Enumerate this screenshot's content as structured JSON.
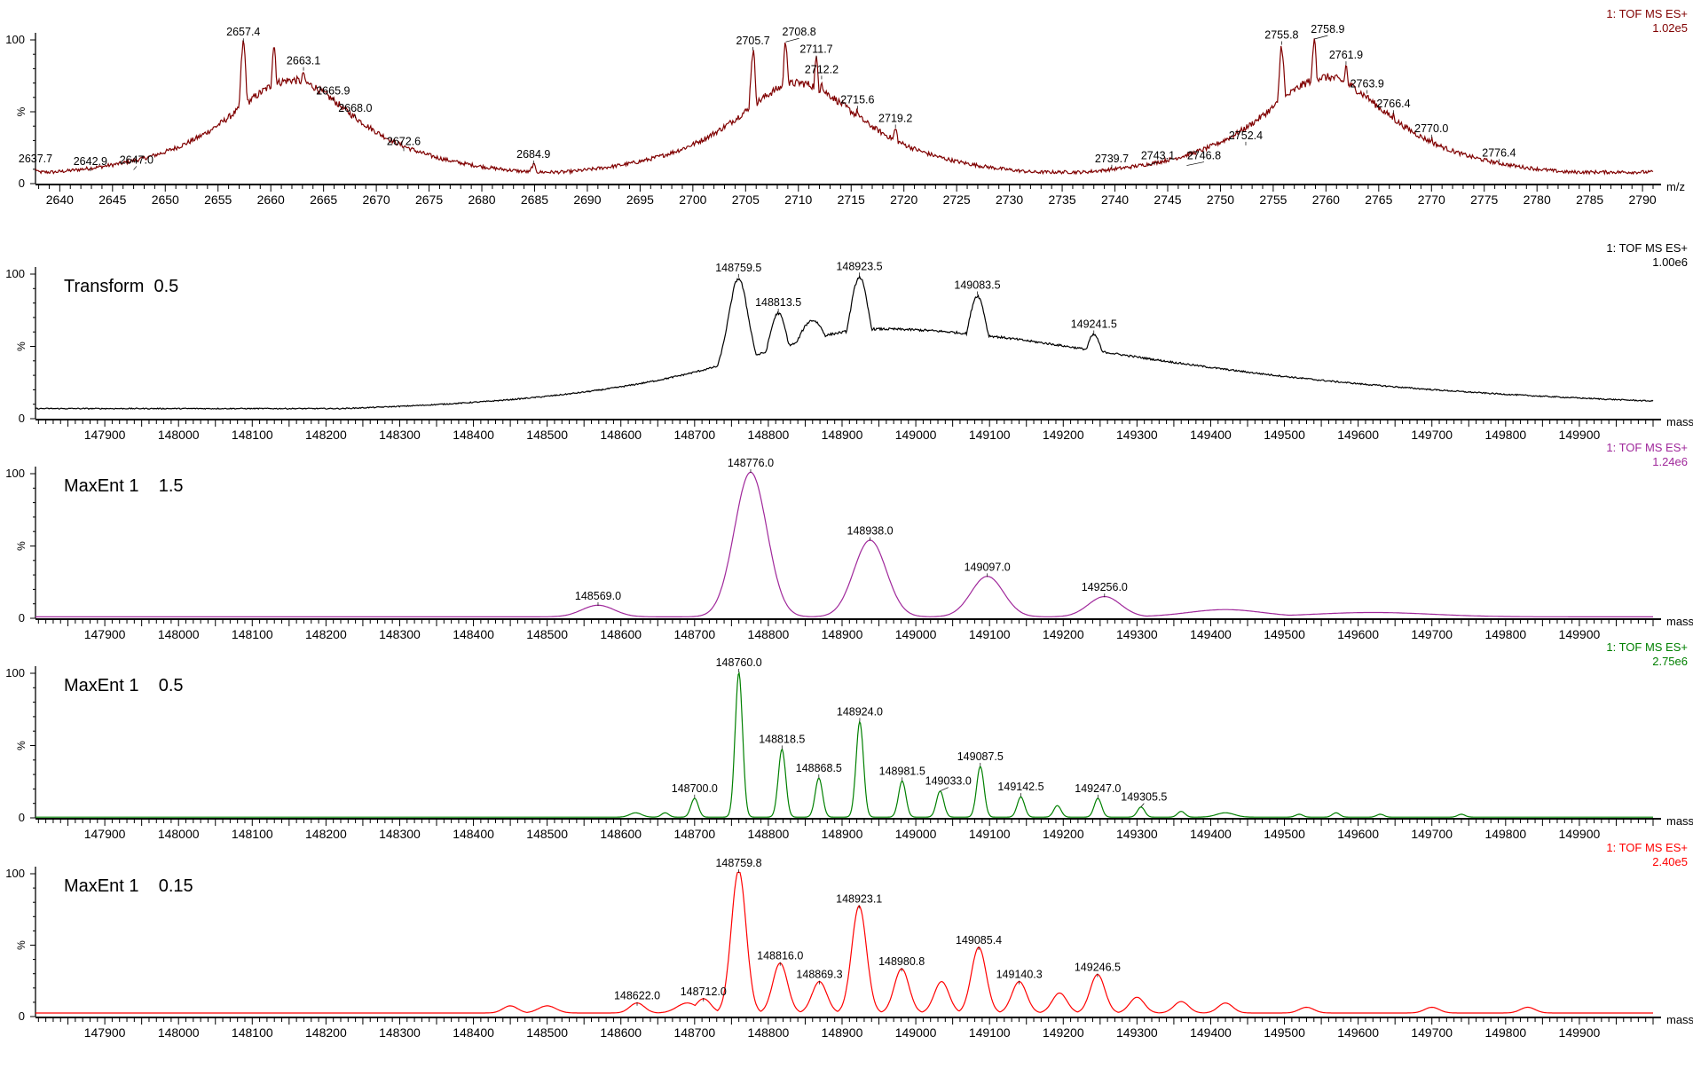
{
  "chart_data": [
    {
      "type": "line",
      "title": "",
      "xlabel": "m/z",
      "ylabel": "%",
      "scan_label": "1: TOF MS ES+",
      "intensity": "1.02e5",
      "color": "#800000",
      "xlim": [
        2637.7,
        2791
      ],
      "ylim": [
        0,
        100
      ],
      "yticks": [
        "0",
        "100"
      ],
      "xticks": [
        "2640",
        "2645",
        "2650",
        "2655",
        "2660",
        "2665",
        "2670",
        "2675",
        "2680",
        "2685",
        "2690",
        "2695",
        "2700",
        "2705",
        "2710",
        "2715",
        "2720",
        "2725",
        "2730",
        "2735",
        "2740",
        "2745",
        "2750",
        "2755",
        "2760",
        "2765",
        "2770",
        "2775",
        "2780",
        "2785",
        "2790"
      ],
      "minor_tick_step": 1,
      "baseline": 8,
      "noise": 1.6,
      "shape": "lorentz",
      "peak_width": 0.45,
      "peaks": [
        {
          "x": 2637.7,
          "y": 10,
          "label": "2637.7"
        },
        {
          "x": 2642.9,
          "y": 8,
          "label": "2642.9"
        },
        {
          "x": 2647.0,
          "y": 9,
          "label": "2647.0"
        },
        {
          "x": 2657.4,
          "y": 98,
          "label": "2657.4"
        },
        {
          "x": 2663.1,
          "y": 78,
          "label": "2663.1"
        },
        {
          "x": 2665.9,
          "y": 57,
          "label": "2665.9"
        },
        {
          "x": 2668.0,
          "y": 45,
          "label": "2668.0"
        },
        {
          "x": 2672.6,
          "y": 22,
          "label": "2672.6"
        },
        {
          "x": 2684.9,
          "y": 13,
          "label": "2684.9"
        },
        {
          "x": 2705.7,
          "y": 92,
          "label": "2705.7"
        },
        {
          "x": 2708.8,
          "y": 98,
          "label": "2708.8"
        },
        {
          "x": 2711.7,
          "y": 86,
          "label": "2711.7"
        },
        {
          "x": 2712.2,
          "y": 72,
          "label": "2712.2"
        },
        {
          "x": 2715.6,
          "y": 51,
          "label": "2715.6"
        },
        {
          "x": 2719.2,
          "y": 38,
          "label": "2719.2"
        },
        {
          "x": 2739.7,
          "y": 10,
          "label": "2739.7"
        },
        {
          "x": 2743.1,
          "y": 12,
          "label": "2743.1"
        },
        {
          "x": 2746.8,
          "y": 12,
          "label": "2746.8"
        },
        {
          "x": 2752.4,
          "y": 26,
          "label": "2752.4"
        },
        {
          "x": 2755.8,
          "y": 96,
          "label": "2755.8"
        },
        {
          "x": 2758.9,
          "y": 100,
          "label": "2758.9"
        },
        {
          "x": 2761.9,
          "y": 82,
          "label": "2761.9"
        },
        {
          "x": 2763.9,
          "y": 62,
          "label": "2763.9"
        },
        {
          "x": 2766.4,
          "y": 48,
          "label": "2766.4"
        },
        {
          "x": 2770.0,
          "y": 31,
          "label": "2770.0"
        },
        {
          "x": 2776.4,
          "y": 14,
          "label": "2776.4"
        }
      ],
      "unlabeled_peaks": [
        {
          "x": 2660.3,
          "y": 96
        },
        {
          "x": 2662.0,
          "y": 72,
          "w": 8
        },
        {
          "x": 2710.0,
          "y": 70,
          "w": 8
        },
        {
          "x": 2760.0,
          "y": 74,
          "w": 8
        }
      ]
    },
    {
      "type": "line",
      "title": "Transform  0.5",
      "xlabel": "mass",
      "ylabel": "%",
      "scan_label": "1: TOF MS ES+",
      "intensity": "1.00e6",
      "color": "#000000",
      "xlim": [
        147806,
        150000
      ],
      "ylim": [
        0,
        100
      ],
      "yticks": [
        "0",
        "100"
      ],
      "xticks": [
        "147900",
        "148000",
        "148100",
        "148200",
        "148300",
        "148400",
        "148500",
        "148600",
        "148700",
        "148800",
        "148900",
        "149000",
        "149100",
        "149200",
        "149300",
        "149400",
        "149500",
        "149600",
        "149700",
        "149800",
        "149900"
      ],
      "minor_tick_step": 10,
      "baseline": 7,
      "noise": 0.5,
      "shape": "lorentz",
      "peak_width": 22,
      "peaks": [
        {
          "x": 148759.5,
          "y": 97,
          "label": "148759.5"
        },
        {
          "x": 148813.5,
          "y": 73,
          "label": "148813.5"
        },
        {
          "x": 148923.5,
          "y": 98,
          "label": "148923.5"
        },
        {
          "x": 149083.5,
          "y": 85,
          "label": "149083.5"
        },
        {
          "x": 149241.5,
          "y": 58,
          "label": "149241.5"
        }
      ],
      "unlabeled_peaks": [
        {
          "x": 148950,
          "y": 62,
          "w": 260,
          "w_right": 520
        },
        {
          "x": 148860,
          "y": 68,
          "w": 40
        }
      ]
    },
    {
      "type": "line",
      "title": "MaxEnt 1    1.5",
      "xlabel": "mass",
      "ylabel": "%",
      "scan_label": "1: TOF MS ES+",
      "intensity": "1.24e6",
      "color": "#a0289b",
      "xlim": [
        147806,
        150000
      ],
      "ylim": [
        0,
        100
      ],
      "yticks": [
        "0",
        "100"
      ],
      "xticks": [
        "147900",
        "148000",
        "148100",
        "148200",
        "148300",
        "148400",
        "148500",
        "148600",
        "148700",
        "148800",
        "148900",
        "149000",
        "149100",
        "149200",
        "149300",
        "149400",
        "149500",
        "149600",
        "149700",
        "149800",
        "149900"
      ],
      "minor_tick_step": 10,
      "baseline": 1,
      "noise": 0,
      "shape": "gauss",
      "peak_width": 22,
      "peaks": [
        {
          "x": 148569.0,
          "y": 8,
          "label": "148569.0"
        },
        {
          "x": 148776.0,
          "y": 100,
          "label": "148776.0"
        },
        {
          "x": 148938.0,
          "y": 53,
          "label": "148938.0"
        },
        {
          "x": 149097.0,
          "y": 28,
          "label": "149097.0"
        },
        {
          "x": 149256.0,
          "y": 14,
          "label": "149256.0"
        }
      ],
      "unlabeled_peaks": [
        {
          "x": 149420,
          "y": 5,
          "w": 50
        },
        {
          "x": 149620,
          "y": 3,
          "w": 80
        }
      ]
    },
    {
      "type": "line",
      "title": "MaxEnt 1    0.5",
      "xlabel": "mass",
      "ylabel": "%",
      "scan_label": "1: TOF MS ES+",
      "intensity": "2.75e6",
      "color": "#008000",
      "xlim": [
        147806,
        150000
      ],
      "ylim": [
        0,
        100
      ],
      "yticks": [
        "0",
        "100"
      ],
      "xticks": [
        "147900",
        "148000",
        "148100",
        "148200",
        "148300",
        "148400",
        "148500",
        "148600",
        "148700",
        "148800",
        "148900",
        "149000",
        "149100",
        "149200",
        "149300",
        "149400",
        "149500",
        "149600",
        "149700",
        "149800",
        "149900"
      ],
      "minor_tick_step": 10,
      "baseline": 0.5,
      "noise": 0,
      "shape": "gauss",
      "peak_width": 5,
      "peaks": [
        {
          "x": 148700.0,
          "y": 13,
          "label": "148700.0"
        },
        {
          "x": 148760.0,
          "y": 100,
          "label": "148760.0"
        },
        {
          "x": 148818.5,
          "y": 47,
          "label": "148818.5"
        },
        {
          "x": 148868.5,
          "y": 27,
          "label": "148868.5"
        },
        {
          "x": 148924.0,
          "y": 66,
          "label": "148924.0"
        },
        {
          "x": 148981.5,
          "y": 25,
          "label": "148981.5"
        },
        {
          "x": 149033.0,
          "y": 18,
          "label": "149033.0"
        },
        {
          "x": 149087.5,
          "y": 35,
          "label": "149087.5"
        },
        {
          "x": 149142.5,
          "y": 14,
          "label": "149142.5"
        },
        {
          "x": 149247.0,
          "y": 13,
          "label": "149247.0"
        },
        {
          "x": 149305.5,
          "y": 7,
          "label": "149305.5"
        }
      ],
      "unlabeled_peaks": [
        {
          "x": 149192,
          "y": 8
        },
        {
          "x": 149360,
          "y": 4
        },
        {
          "x": 149420,
          "y": 3,
          "w": 12
        },
        {
          "x": 148620,
          "y": 3,
          "w": 8
        },
        {
          "x": 148660,
          "y": 3
        },
        {
          "x": 149570,
          "y": 3
        },
        {
          "x": 149630,
          "y": 2
        },
        {
          "x": 149740,
          "y": 2
        },
        {
          "x": 149520,
          "y": 2
        }
      ]
    },
    {
      "type": "line",
      "title": "MaxEnt 1    0.15",
      "xlabel": "mass",
      "ylabel": "%",
      "scan_label": "1: TOF MS ES+",
      "intensity": "2.40e5",
      "color": "#ff0000",
      "xlim": [
        147806,
        150000
      ],
      "ylim": [
        0,
        100
      ],
      "yticks": [
        "0",
        "100"
      ],
      "xticks": [
        "147900",
        "148000",
        "148100",
        "148200",
        "148300",
        "148400",
        "148500",
        "148600",
        "148700",
        "148800",
        "148900",
        "149000",
        "149100",
        "149200",
        "149300",
        "149400",
        "149500",
        "149600",
        "149700",
        "149800",
        "149900"
      ],
      "minor_tick_step": 10,
      "baseline": 2.5,
      "noise": 0,
      "shape": "gauss",
      "peak_width": 10,
      "peaks": [
        {
          "x": 148622.0,
          "y": 7,
          "label": "148622.0"
        },
        {
          "x": 148712.0,
          "y": 10,
          "label": "148712.0"
        },
        {
          "x": 148759.8,
          "y": 100,
          "label": "148759.8"
        },
        {
          "x": 148816.0,
          "y": 35,
          "label": "148816.0"
        },
        {
          "x": 148869.3,
          "y": 22,
          "label": "148869.3"
        },
        {
          "x": 148923.1,
          "y": 75,
          "label": "148923.1"
        },
        {
          "x": 148980.8,
          "y": 31,
          "label": "148980.8"
        },
        {
          "x": 149085.4,
          "y": 46,
          "label": "149085.4"
        },
        {
          "x": 149140.3,
          "y": 22,
          "label": "149140.3"
        },
        {
          "x": 149246.5,
          "y": 27,
          "label": "149246.5"
        }
      ],
      "unlabeled_peaks": [
        {
          "x": 149035,
          "y": 22
        },
        {
          "x": 149195,
          "y": 14
        },
        {
          "x": 149300,
          "y": 11
        },
        {
          "x": 149360,
          "y": 8
        },
        {
          "x": 149420,
          "y": 7
        },
        {
          "x": 148690,
          "y": 7,
          "w": 14
        },
        {
          "x": 148500,
          "y": 5,
          "w": 12
        },
        {
          "x": 148450,
          "y": 5,
          "w": 10
        },
        {
          "x": 149530,
          "y": 4
        },
        {
          "x": 149700,
          "y": 4
        },
        {
          "x": 149830,
          "y": 4
        }
      ]
    }
  ]
}
